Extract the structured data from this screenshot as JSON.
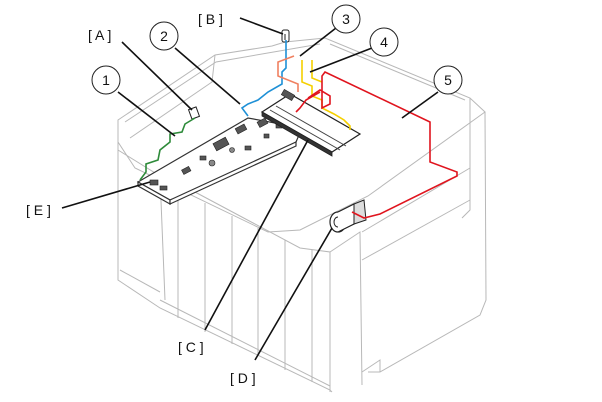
{
  "callouts": {
    "n1": "1",
    "n2": "2",
    "n3": "3",
    "n4": "4",
    "n5": "5"
  },
  "labels": {
    "A": "[ A ]",
    "B": "[ B ]",
    "C": "[ C ]",
    "D": "[ D ]",
    "E": "[ E ]"
  },
  "cable_colors": {
    "cable_1": "#2e8b3a",
    "cable_2": "#1e90d6",
    "cable_3": "#f08060",
    "cable_4": "#f5d000",
    "cable_5": "#e0141e"
  }
}
